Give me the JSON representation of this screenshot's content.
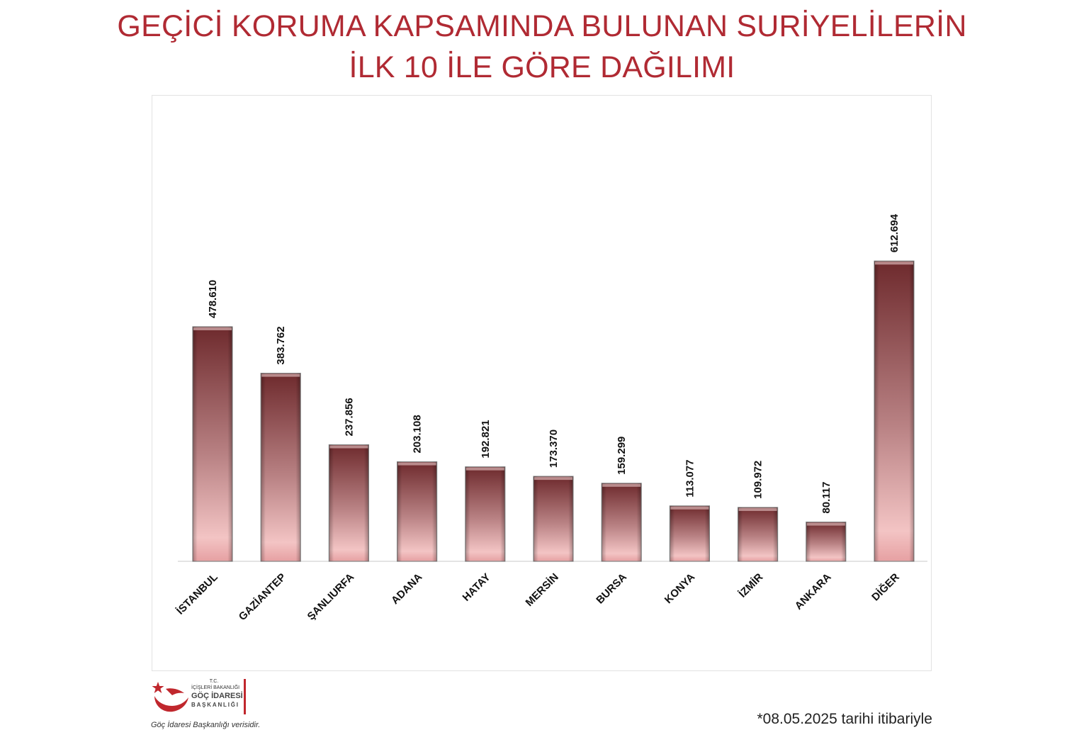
{
  "title_line1": "GEÇİCİ KORUMA KAPSAMINDA BULUNAN SURİYELİLERİN",
  "title_line2": "İLK 10 İLE GÖRE DAĞILIMI",
  "logo": {
    "tc": "T.C.",
    "ministry": "İÇİŞLERİ BAKANLIĞI",
    "name": "GÖÇ İDARESİ",
    "presidency": "BAŞKANLIĞI"
  },
  "source_text": "Göç İdaresi Başkanlığı verisidir.",
  "date_note": "*08.05.2025 tarihi itibariyle",
  "colors": {
    "title": "#b02a33",
    "bar_dark": "#6e2a2d",
    "bar_light": "#f2c1c1",
    "logo_red": "#c0272d"
  },
  "chart_data": {
    "type": "bar",
    "title": "GEÇİCİ KORUMA KAPSAMINDA BULUNAN SURİYELİLERİN İLK 10 İLE GÖRE DAĞILIMI",
    "categories": [
      "İSTANBUL",
      "GAZİANTEP",
      "ŞANLIURFA",
      "ADANA",
      "HATAY",
      "MERSİN",
      "BURSA",
      "KONYA",
      "İZMİR",
      "ANKARA",
      "DİĞER"
    ],
    "values": [
      478610,
      383762,
      237856,
      203108,
      192821,
      173370,
      159299,
      113077,
      109972,
      80117,
      612694
    ],
    "value_labels": [
      "478.610",
      "383.762",
      "237.856",
      "203.108",
      "192.821",
      "173.370",
      "159.299",
      "113.077",
      "109.972",
      "80.117",
      "612.694"
    ],
    "xlabel": "",
    "ylabel": "",
    "ylim": [
      0,
      950000
    ],
    "grid": false,
    "legend": "none"
  }
}
